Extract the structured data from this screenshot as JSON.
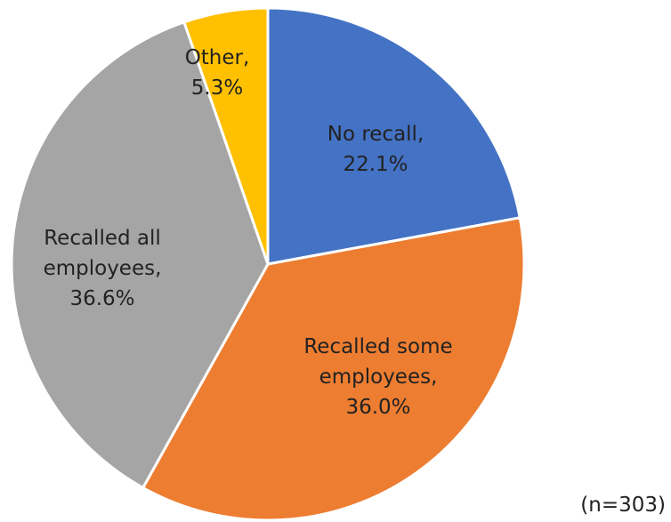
{
  "chart_data": {
    "type": "pie",
    "categories": [
      "No recall,",
      "Recalled some employees,",
      "Recalled all employees,",
      "Other,"
    ],
    "values": [
      22.1,
      36.0,
      36.6,
      5.3
    ],
    "value_labels": [
      "22.1%",
      "36.0%",
      "36.6%",
      "5.3%"
    ],
    "colors": [
      "#4472c4",
      "#ed7d31",
      "#a5a5a5",
      "#ffc000"
    ],
    "note": "(n=303)"
  }
}
